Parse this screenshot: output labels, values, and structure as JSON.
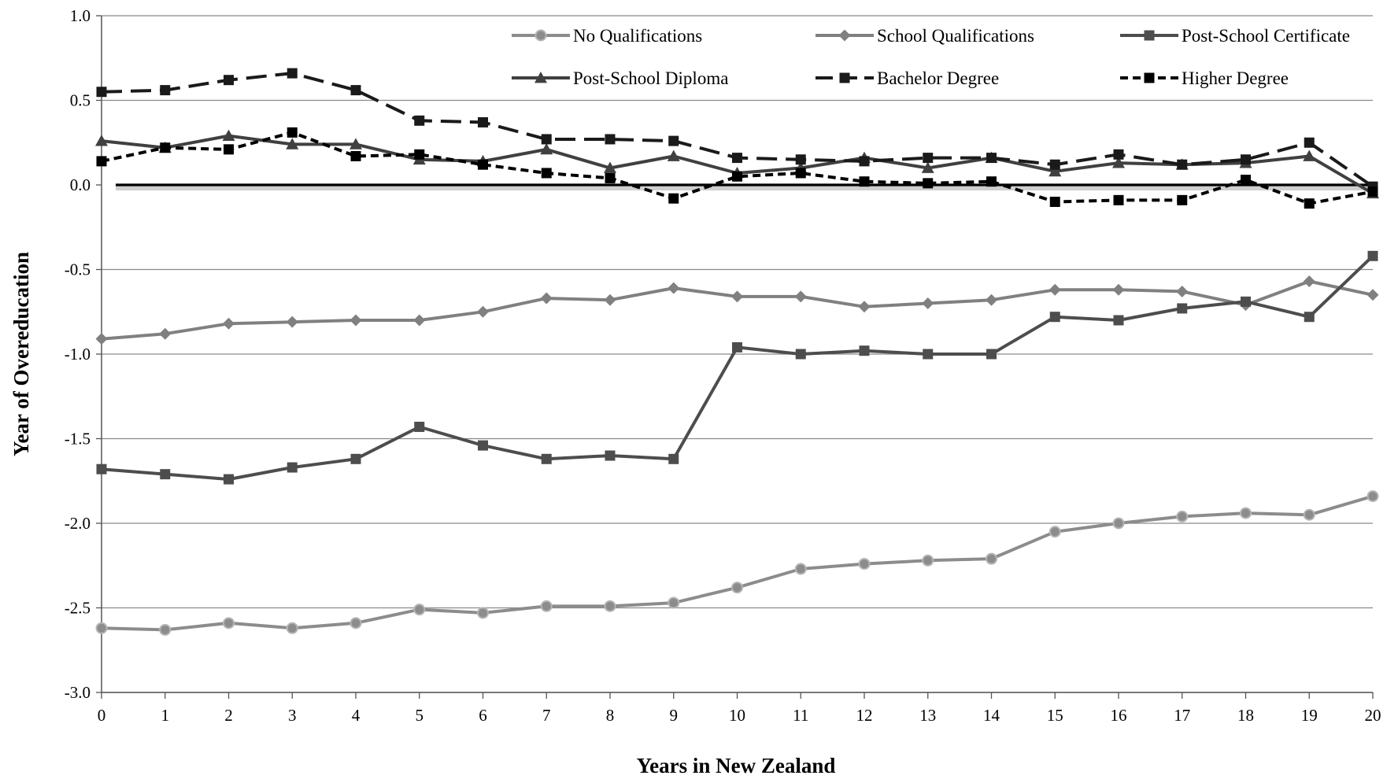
{
  "chart_data": {
    "type": "line",
    "title": "",
    "xlabel": "Years in New Zealand",
    "ylabel": "Year of Overeducation",
    "xlim": [
      0,
      20
    ],
    "ylim": [
      -3.0,
      1.0
    ],
    "y_ticks": [
      1.0,
      0.5,
      0.0,
      -0.5,
      -1.0,
      -1.5,
      -2.0,
      -2.5,
      -3.0
    ],
    "y_tick_labels": [
      "1.0",
      "0.5",
      "0.0",
      "-0.5",
      "-1.0",
      "-1.5",
      "-2.0",
      "-2.5",
      "-3.0"
    ],
    "x": [
      0,
      1,
      2,
      3,
      4,
      5,
      6,
      7,
      8,
      9,
      10,
      11,
      12,
      13,
      14,
      15,
      16,
      17,
      18,
      19,
      20
    ],
    "x_tick_labels": [
      "0",
      "1",
      "2",
      "3",
      "4",
      "5",
      "6",
      "7",
      "8",
      "9",
      "10",
      "11",
      "12",
      "13",
      "14",
      "15",
      "16",
      "17",
      "18",
      "19",
      "20"
    ],
    "grid": true,
    "legend_position": "top-right",
    "series": [
      {
        "name": "No Qualifications",
        "color": "#8c8c8c",
        "marker": "circle",
        "dash": "solid",
        "values": [
          -2.62,
          -2.63,
          -2.59,
          -2.62,
          -2.59,
          -2.51,
          -2.53,
          -2.49,
          -2.49,
          -2.47,
          -2.38,
          -2.27,
          -2.24,
          -2.22,
          -2.21,
          -2.05,
          -2.0,
          -1.96,
          -1.94,
          -1.95,
          -1.84
        ]
      },
      {
        "name": "School Qualifications",
        "color": "#808080",
        "marker": "diamond",
        "dash": "solid",
        "values": [
          -0.91,
          -0.88,
          -0.82,
          -0.81,
          -0.8,
          -0.8,
          -0.75,
          -0.67,
          -0.68,
          -0.61,
          -0.66,
          -0.66,
          -0.72,
          -0.7,
          -0.68,
          -0.62,
          -0.62,
          -0.63,
          -0.71,
          -0.57,
          -0.65
        ]
      },
      {
        "name": "Post-School Certificate",
        "color": "#4d4d4d",
        "marker": "square",
        "dash": "solid",
        "values": [
          -1.68,
          -1.71,
          -1.74,
          -1.67,
          -1.62,
          -1.43,
          -1.54,
          -1.62,
          -1.6,
          -1.62,
          -0.96,
          -1.0,
          -0.98,
          -1.0,
          -1.0,
          -0.78,
          -0.8,
          -0.73,
          -0.69,
          -0.78,
          -0.42
        ]
      },
      {
        "name": "Post-School Diploma",
        "color": "#404040",
        "marker": "triangle",
        "dash": "solid",
        "values": [
          0.26,
          0.22,
          0.29,
          0.24,
          0.24,
          0.15,
          0.14,
          0.21,
          0.1,
          0.17,
          0.07,
          0.1,
          0.16,
          0.1,
          0.16,
          0.08,
          0.13,
          0.12,
          0.13,
          0.17,
          -0.05
        ]
      },
      {
        "name": "Bachelor Degree",
        "color": "#1a1a1a",
        "marker": "square",
        "dash": "long",
        "values": [
          0.55,
          0.56,
          0.62,
          0.66,
          0.56,
          0.38,
          0.37,
          0.27,
          0.27,
          0.26,
          0.16,
          0.15,
          0.14,
          0.16,
          0.16,
          0.12,
          0.18,
          0.12,
          0.15,
          0.25,
          -0.01
        ]
      },
      {
        "name": "Higher Degree",
        "color": "#000000",
        "marker": "square",
        "dash": "short",
        "values": [
          0.14,
          0.22,
          0.21,
          0.31,
          0.17,
          0.18,
          0.12,
          0.07,
          0.04,
          -0.08,
          0.05,
          0.07,
          0.02,
          0.01,
          0.02,
          -0.1,
          -0.09,
          -0.09,
          0.03,
          -0.11,
          -0.04
        ]
      }
    ]
  }
}
